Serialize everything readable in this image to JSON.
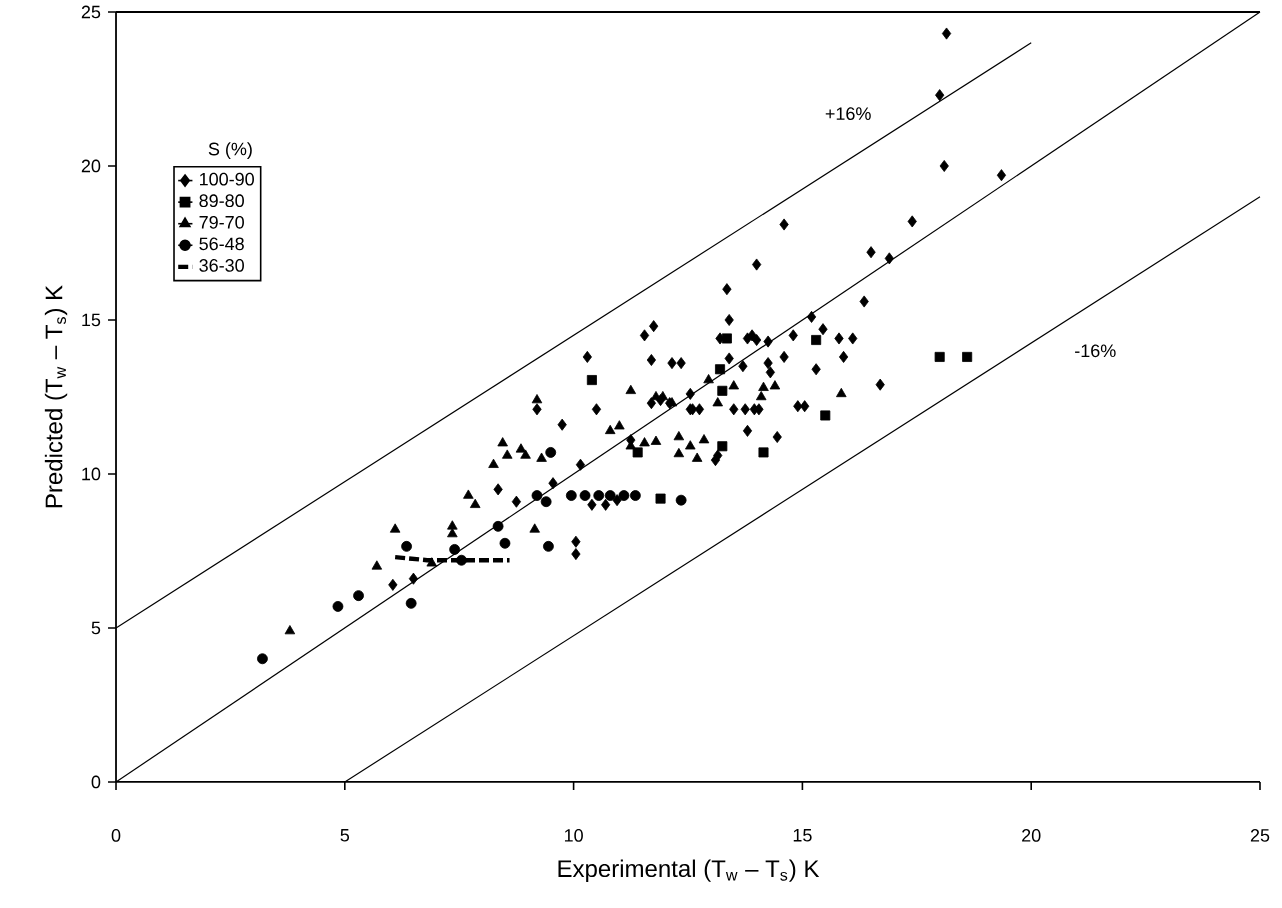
{
  "chart_data": {
    "type": "scatter",
    "xlabel": "Experimental   (T$_{w}$ – T$_{s}$) K",
    "ylabel": "Predicted (T$_{w}$ – T$_{s}$) K",
    "legend_title": "S (%)",
    "legend": "top left",
    "xlim": [
      0,
      25
    ],
    "ylim": [
      0,
      25
    ],
    "xticks": [
      0,
      5,
      10,
      15,
      20,
      25
    ],
    "yticks": [
      0,
      5,
      10,
      15,
      20,
      25
    ],
    "annotations": [
      "+16%",
      "-16%"
    ],
    "series": [
      {
        "name": "100-90",
        "marker": "diamond",
        "color": "#000000",
        "x": [
          18.15,
          18.0,
          18.1,
          19.35,
          17.4,
          14.6,
          14.0,
          16.5,
          16.9,
          13.35,
          16.35,
          13.4,
          15.2,
          11.55,
          11.75,
          13.2,
          13.8,
          13.9,
          14.0,
          14.25,
          14.8,
          15.45,
          15.8,
          16.1,
          11.7,
          12.15,
          12.35,
          13.4,
          14.6,
          15.9,
          13.7,
          14.25,
          14.3,
          15.3,
          16.7,
          12.55,
          12.75,
          13.5,
          13.75,
          13.95,
          14.05,
          14.9,
          15.05,
          13.8,
          14.45,
          13.15,
          10.5,
          10.3,
          9.2,
          9.75,
          10.15,
          9.55,
          8.75,
          8.35,
          6.05,
          6.5,
          10.05,
          10.05,
          10.4,
          10.7,
          10.95,
          11.25,
          11.7,
          11.9,
          12.1,
          12.55,
          12.6,
          13.1
        ],
        "values": [
          24.3,
          22.3,
          20.0,
          19.7,
          18.2,
          18.1,
          16.8,
          17.2,
          17.0,
          16.0,
          15.6,
          15.0,
          15.1,
          14.5,
          14.8,
          14.4,
          14.4,
          14.5,
          14.35,
          14.3,
          14.5,
          14.7,
          14.4,
          14.4,
          13.7,
          13.6,
          13.6,
          13.75,
          13.8,
          13.8,
          13.5,
          13.6,
          13.3,
          13.4,
          12.9,
          12.1,
          12.1,
          12.1,
          12.1,
          12.1,
          12.1,
          12.2,
          12.2,
          11.4,
          11.2,
          10.6,
          12.1,
          13.8,
          12.1,
          11.6,
          10.3,
          9.7,
          9.1,
          9.5,
          6.4,
          6.6,
          7.8,
          7.4,
          9.0,
          9.0,
          9.15,
          11.1,
          12.3,
          12.4,
          12.3,
          12.6,
          12.1,
          10.45
        ]
      },
      {
        "name": "89-80",
        "marker": "square",
        "color": "#000000",
        "x": [
          18.0,
          18.6,
          13.35,
          15.3,
          13.2,
          13.25,
          15.5,
          13.25,
          14.15,
          11.4,
          10.4,
          11.9
        ],
        "values": [
          13.8,
          13.8,
          14.4,
          14.35,
          13.4,
          12.7,
          11.9,
          10.9,
          10.7,
          10.7,
          13.05,
          9.2
        ]
      },
      {
        "name": "79-70",
        "marker": "triangle",
        "color": "#000000",
        "x": [
          3.8,
          5.7,
          6.1,
          6.9,
          7.35,
          7.35,
          7.7,
          7.85,
          9.15,
          8.25,
          8.45,
          8.55,
          8.85,
          8.95,
          9.3,
          9.2,
          10.8,
          11.0,
          11.25,
          11.25,
          11.55,
          11.8,
          11.8,
          11.95,
          12.15,
          12.95,
          13.5,
          14.15,
          14.4,
          13.15,
          14.1,
          15.85,
          12.3,
          12.55,
          12.85,
          12.3,
          12.7
        ],
        "values": [
          4.9,
          7.0,
          8.2,
          7.1,
          8.3,
          8.05,
          9.3,
          9.0,
          8.2,
          10.3,
          11.0,
          10.6,
          10.8,
          10.6,
          10.5,
          12.4,
          11.4,
          11.55,
          12.7,
          10.9,
          11.0,
          11.05,
          12.5,
          12.5,
          12.3,
          13.05,
          12.85,
          12.8,
          12.85,
          12.3,
          12.5,
          12.6,
          11.2,
          10.9,
          11.1,
          10.65,
          10.5
        ]
      },
      {
        "name": "56-48",
        "marker": "circle",
        "color": "#000000",
        "x": [
          3.2,
          4.85,
          5.3,
          6.45,
          6.35,
          7.4,
          7.55,
          8.35,
          8.5,
          9.45,
          9.5,
          9.2,
          9.4,
          9.95,
          10.25,
          10.55,
          10.8,
          11.1,
          11.35,
          12.35
        ],
        "values": [
          4.0,
          5.7,
          6.05,
          5.8,
          7.65,
          7.55,
          7.2,
          8.3,
          7.75,
          7.65,
          10.7,
          9.3,
          9.1,
          9.3,
          9.3,
          9.3,
          9.3,
          9.3,
          9.3,
          9.15
        ]
      },
      {
        "name": "36-30",
        "type": "line",
        "marker": "none",
        "line_style": "dashed",
        "color": "#000000",
        "x": [
          6.1,
          6.8,
          7.5,
          8.0,
          8.6
        ],
        "values": [
          7.3,
          7.2,
          7.2,
          7.2,
          7.2
        ]
      },
      {
        "type": "line",
        "marker": "none",
        "line_style": "solid",
        "color": "#000000",
        "x": [
          0,
          20
        ],
        "values": [
          5,
          24
        ]
      },
      {
        "type": "line",
        "marker": "none",
        "line_style": "solid",
        "color": "#000000",
        "x": [
          0,
          25
        ],
        "values": [
          0,
          25
        ]
      },
      {
        "type": "line",
        "marker": "none",
        "line_style": "solid",
        "color": "#000000",
        "x": [
          5,
          25
        ],
        "values": [
          0,
          19
        ]
      }
    ]
  }
}
